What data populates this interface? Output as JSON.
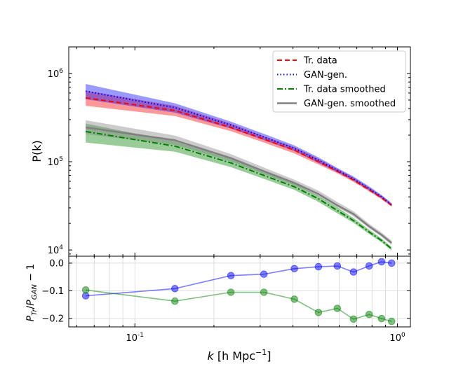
{
  "chart_data": [
    {
      "type": "line",
      "panel": "top",
      "ylabel": "P(k)",
      "yscale": "log",
      "xscale": "log",
      "xlim": [
        0.056,
        1.12
      ],
      "ylim": [
        8500,
        2000000
      ],
      "y_tick_labels": [
        "10^4",
        "10^5",
        "10^6"
      ],
      "legend": {
        "placement": "top-right"
      },
      "x": [
        0.065,
        0.142,
        0.232,
        0.31,
        0.405,
        0.5,
        0.59,
        0.68,
        0.78,
        0.87,
        0.95
      ],
      "series": [
        {
          "name": "Tr. data",
          "color": "#ff0000",
          "style": "dashed",
          "values": [
            530000,
            380000,
            245000,
            180000,
            135000,
            100000,
            78000,
            62000,
            48000,
            39000,
            32000
          ],
          "band_low": [
            430000,
            330000,
            222000,
            165000,
            124000,
            93000,
            74000,
            59000,
            46000,
            37500,
            31000
          ],
          "band_high": [
            640000,
            430000,
            270000,
            195000,
            146000,
            108000,
            83000,
            66000,
            51000,
            41000,
            33500
          ]
        },
        {
          "name": "GAN-gen.",
          "color": "#0000ff",
          "style": "dotted",
          "values": [
            630000,
            410000,
            260000,
            190000,
            142000,
            104000,
            80000,
            64000,
            49500,
            40000,
            32500
          ],
          "band_low": [
            510000,
            360000,
            238000,
            176000,
            132000,
            97000,
            76000,
            61000,
            47500,
            38500,
            31500
          ],
          "band_high": [
            760000,
            460000,
            285000,
            207000,
            153000,
            112000,
            85000,
            68000,
            52500,
            42000,
            34000
          ]
        },
        {
          "name": "Tr. data smoothed",
          "color": "#008000",
          "style": "dashdot",
          "values": [
            220000,
            150000,
            97000,
            70000,
            52000,
            38000,
            28000,
            21500,
            16000,
            12800,
            10300
          ],
          "band_low": [
            165000,
            130000,
            87000,
            64000,
            48000,
            35000,
            26000,
            20300,
            15200,
            12200,
            9900
          ],
          "band_high": [
            270000,
            170000,
            108000,
            77000,
            56500,
            41000,
            30500,
            23000,
            17000,
            13500,
            10800
          ]
        },
        {
          "name": "GAN-gen. smoothed",
          "color": "#808080",
          "style": "solid",
          "values": [
            245000,
            175000,
            110000,
            78000,
            57500,
            43000,
            32000,
            25500,
            18500,
            14800,
            12000
          ],
          "band_low": [
            205000,
            155000,
            101000,
            72500,
            54000,
            40500,
            30500,
            24000,
            17600,
            14100,
            11400
          ],
          "band_high": [
            295000,
            198000,
            122000,
            86000,
            62500,
            47000,
            35000,
            27500,
            19800,
            15800,
            12800
          ]
        }
      ]
    },
    {
      "type": "line",
      "panel": "bottom",
      "xlabel": "k [h Mpc^-1]",
      "ylabel": "P_Tr/P_GAN − 1",
      "xscale": "log",
      "xlim": [
        0.056,
        1.12
      ],
      "ylim": [
        -0.23,
        0.025
      ],
      "y_tick_labels": [
        "0.0",
        "−0.1",
        "−0.2"
      ],
      "x_tick_labels": [
        "10^-1",
        "10^0"
      ],
      "grid": true,
      "x": [
        0.065,
        0.142,
        0.232,
        0.31,
        0.405,
        0.5,
        0.59,
        0.68,
        0.78,
        0.87,
        0.95
      ],
      "series": [
        {
          "color": "#0000ff",
          "values": [
            -0.118,
            -0.092,
            -0.045,
            -0.04,
            -0.02,
            -0.013,
            -0.01,
            -0.032,
            -0.01,
            0.005,
            0.0
          ]
        },
        {
          "color": "#008000",
          "values": [
            -0.097,
            -0.137,
            -0.105,
            -0.105,
            -0.13,
            -0.178,
            -0.163,
            -0.202,
            -0.185,
            -0.2,
            -0.21
          ]
        }
      ]
    }
  ]
}
